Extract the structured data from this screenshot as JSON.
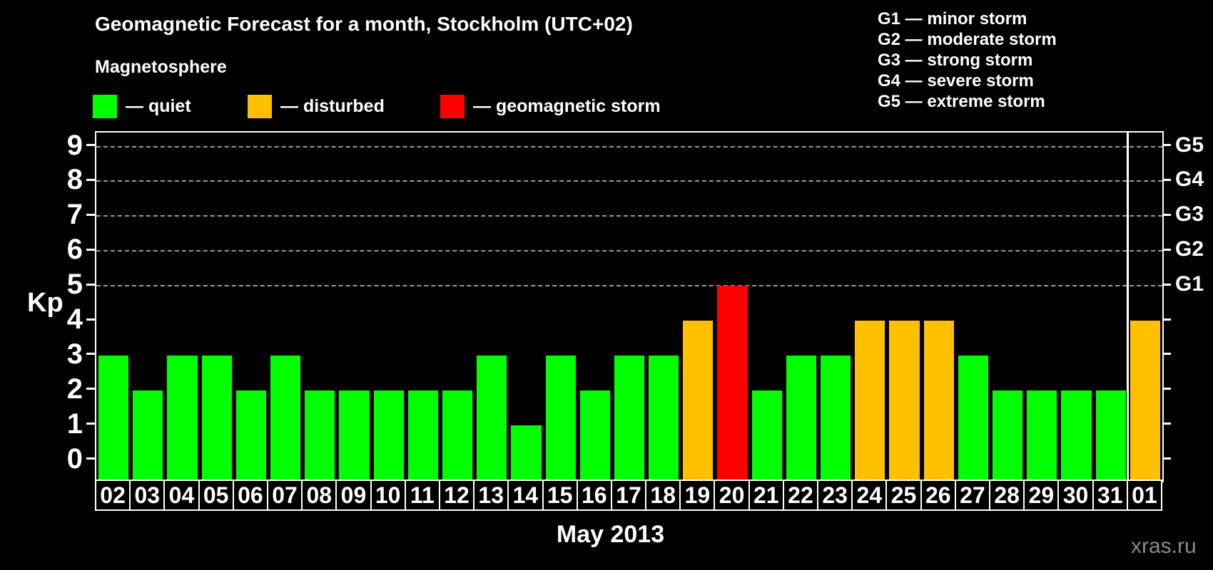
{
  "header": {
    "title": "Geomagnetic Forecast for a month, Stockholm (UTC+02)"
  },
  "legend": {
    "title": "Magnetosphere",
    "items": [
      {
        "name": "quiet",
        "label": "— quiet",
        "color": "#00FF00"
      },
      {
        "name": "disturbed",
        "label": "— disturbed",
        "color": "#FFC000"
      },
      {
        "name": "storm",
        "label": "— geomagnetic storm",
        "color": "#FF0000"
      }
    ]
  },
  "g_legend": [
    "G1 — minor storm",
    "G2 — moderate storm",
    "G3 — strong storm",
    "G4 — severe storm",
    "G5 — extreme storm"
  ],
  "chart_data": {
    "type": "bar",
    "title": "Geomagnetic Forecast for a month, Stockholm (UTC+02)",
    "xlabel": "May 2013",
    "ylabel": "Kp",
    "ylim": [
      0,
      9
    ],
    "categories": [
      "02",
      "03",
      "04",
      "05",
      "06",
      "07",
      "08",
      "09",
      "10",
      "11",
      "12",
      "13",
      "14",
      "15",
      "16",
      "17",
      "18",
      "19",
      "20",
      "21",
      "22",
      "23",
      "24",
      "25",
      "26",
      "27",
      "28",
      "29",
      "30",
      "31",
      "01"
    ],
    "values": [
      3,
      2,
      3,
      3,
      2,
      3,
      2,
      2,
      2,
      2,
      2,
      3,
      1,
      3,
      2,
      3,
      3,
      4,
      5,
      2,
      3,
      3,
      4,
      4,
      4,
      3,
      2,
      2,
      2,
      2,
      4
    ],
    "statuses": [
      "quiet",
      "quiet",
      "quiet",
      "quiet",
      "quiet",
      "quiet",
      "quiet",
      "quiet",
      "quiet",
      "quiet",
      "quiet",
      "quiet",
      "quiet",
      "quiet",
      "quiet",
      "quiet",
      "quiet",
      "disturbed",
      "storm",
      "quiet",
      "quiet",
      "quiet",
      "disturbed",
      "disturbed",
      "disturbed",
      "quiet",
      "quiet",
      "quiet",
      "quiet",
      "quiet",
      "disturbed"
    ],
    "color_map": {
      "quiet": "#00FF00",
      "disturbed": "#FFC000",
      "storm": "#FF0000"
    },
    "y_ticks": [
      0,
      1,
      2,
      3,
      4,
      5,
      6,
      7,
      8,
      9
    ],
    "gridlines_at": [
      5,
      6,
      7,
      8,
      9
    ],
    "g_labels": [
      {
        "label": "G1",
        "kp": 5
      },
      {
        "label": "G2",
        "kp": 6
      },
      {
        "label": "G3",
        "kp": 7
      },
      {
        "label": "G4",
        "kp": 8
      },
      {
        "label": "G5",
        "kp": 9
      }
    ],
    "month_boundary_after": "31",
    "legend_position": "top",
    "grid": "dashed horizontal at storm levels only"
  },
  "footer": {
    "month_label": "May 2013",
    "watermark": "xras.ru"
  }
}
